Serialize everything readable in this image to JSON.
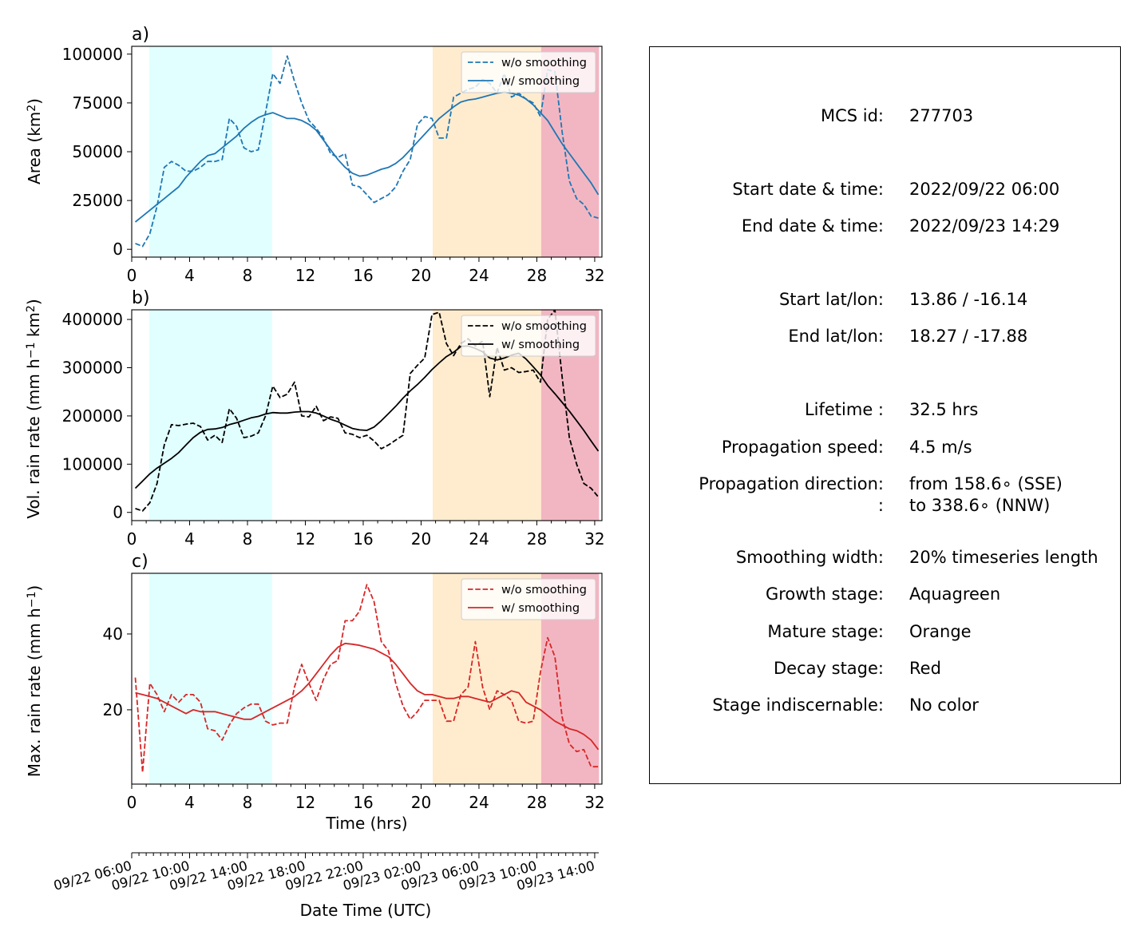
{
  "chart_data": [
    {
      "type": "line",
      "panel_label": "a)",
      "ylabel": "Area  (km²)",
      "ylabel_parts": [
        "Area  (km",
        "2",
        ")"
      ],
      "xlim": [
        0,
        32.5
      ],
      "ylim": [
        -4000,
        104000
      ],
      "x_ticks": [
        0,
        4,
        8,
        12,
        16,
        20,
        24,
        28,
        32
      ],
      "y_ticks": [
        0,
        25000,
        50000,
        75000,
        100000
      ],
      "legend": {
        "placement": "upper-right",
        "entries": [
          "w/o smoothing",
          "w/ smoothing"
        ]
      },
      "color": "#1f77b4",
      "x": [
        0.25,
        0.75,
        1.25,
        1.75,
        2.25,
        2.75,
        3.25,
        3.75,
        4.25,
        4.75,
        5.25,
        5.75,
        6.25,
        6.75,
        7.25,
        7.75,
        8.25,
        8.75,
        9.25,
        9.75,
        10.25,
        10.75,
        11.25,
        11.75,
        12.25,
        12.75,
        13.25,
        13.75,
        14.25,
        14.75,
        15.25,
        15.75,
        16.25,
        16.75,
        17.25,
        17.75,
        18.25,
        18.75,
        19.25,
        19.75,
        20.25,
        20.75,
        21.25,
        21.75,
        22.25,
        22.75,
        23.25,
        23.75,
        24.25,
        24.75,
        25.25,
        25.75,
        26.25,
        26.75,
        27.25,
        27.75,
        28.25,
        28.75,
        29.25,
        29.75,
        30.25,
        30.75,
        31.25,
        31.75,
        32.25
      ],
      "series": [
        {
          "name": "w/o smoothing",
          "style": "dashed",
          "values": [
            3000,
            1500,
            8000,
            22000,
            42000,
            45000,
            43000,
            40000,
            40000,
            42000,
            45000,
            45000,
            46000,
            67000,
            63000,
            52000,
            50000,
            51000,
            70000,
            90000,
            85000,
            99000,
            86000,
            75000,
            66000,
            62000,
            57000,
            49000,
            47000,
            49000,
            33000,
            32000,
            28000,
            24000,
            26000,
            28000,
            32000,
            40000,
            46000,
            64000,
            68000,
            67000,
            57000,
            57000,
            78000,
            80000,
            82000,
            83000,
            87000,
            85000,
            80000,
            90000,
            78000,
            80000,
            77000,
            75000,
            68000,
            92000,
            91000,
            60000,
            35000,
            26000,
            23000,
            17000,
            16000
          ]
        },
        {
          "name": "w/ smoothing",
          "style": "solid",
          "values": [
            14000,
            17000,
            20000,
            23000,
            26000,
            29000,
            32000,
            37000,
            41000,
            45000,
            48000,
            49000,
            52000,
            55000,
            58000,
            62000,
            65000,
            67500,
            69000,
            70000,
            68500,
            67000,
            67000,
            66000,
            64000,
            61000,
            56000,
            51000,
            46000,
            42000,
            39000,
            37500,
            38000,
            39500,
            41000,
            42000,
            44000,
            47000,
            51000,
            55000,
            59000,
            63000,
            67000,
            70000,
            73000,
            75500,
            76500,
            77000,
            78000,
            79000,
            80000,
            80500,
            80000,
            79000,
            77000,
            74000,
            70000,
            66000,
            60000,
            54000,
            49000,
            44000,
            39000,
            34000,
            28000
          ]
        }
      ]
    },
    {
      "type": "line",
      "panel_label": "b)",
      "ylabel": "Vol. rain rate (mm h⁻¹ km²)",
      "ylabel_parts": [
        "Vol. rain rate (mm h",
        "−1",
        " km",
        "2",
        ")"
      ],
      "xlim": [
        0,
        32.5
      ],
      "ylim": [
        -17000,
        420000
      ],
      "x_ticks": [
        0,
        4,
        8,
        12,
        16,
        20,
        24,
        28,
        32
      ],
      "y_ticks": [
        0,
        100000,
        200000,
        300000,
        400000
      ],
      "legend": {
        "placement": "upper-right",
        "entries": [
          "w/o smoothing",
          "w/ smoothing"
        ]
      },
      "color": "#000000",
      "x": [
        0.25,
        0.75,
        1.25,
        1.75,
        2.25,
        2.75,
        3.25,
        3.75,
        4.25,
        4.75,
        5.25,
        5.75,
        6.25,
        6.75,
        7.25,
        7.75,
        8.25,
        8.75,
        9.25,
        9.75,
        10.25,
        10.75,
        11.25,
        11.75,
        12.25,
        12.75,
        13.25,
        13.75,
        14.25,
        14.75,
        15.25,
        15.75,
        16.25,
        16.75,
        17.25,
        17.75,
        18.25,
        18.75,
        19.25,
        19.75,
        20.25,
        20.75,
        21.25,
        21.75,
        22.25,
        22.75,
        23.25,
        23.75,
        24.25,
        24.75,
        25.25,
        25.75,
        26.25,
        26.75,
        27.25,
        27.75,
        28.25,
        28.75,
        29.25,
        29.75,
        30.25,
        30.75,
        31.25,
        31.75,
        32.25
      ],
      "series": [
        {
          "name": "w/o smoothing",
          "style": "dashed",
          "values": [
            8000,
            3000,
            20000,
            60000,
            140000,
            182000,
            180000,
            183000,
            185000,
            178000,
            150000,
            160000,
            145000,
            215000,
            195000,
            155000,
            158000,
            165000,
            200000,
            262000,
            238000,
            245000,
            270000,
            200000,
            198000,
            220000,
            190000,
            198000,
            195000,
            165000,
            162000,
            155000,
            160000,
            148000,
            132000,
            140000,
            150000,
            160000,
            288000,
            305000,
            320000,
            410000,
            415000,
            350000,
            325000,
            350000,
            360000,
            345000,
            355000,
            240000,
            342000,
            295000,
            300000,
            290000,
            292000,
            295000,
            270000,
            400000,
            420000,
            280000,
            155000,
            100000,
            60000,
            50000,
            32000
          ]
        },
        {
          "name": "w/ smoothing",
          "style": "solid",
          "values": [
            50000,
            65000,
            80000,
            92000,
            102000,
            112000,
            124000,
            140000,
            155000,
            166000,
            172000,
            173000,
            176000,
            182000,
            186000,
            191000,
            196000,
            199000,
            204000,
            207000,
            206000,
            206000,
            208000,
            209000,
            209000,
            206000,
            200000,
            193000,
            188000,
            181000,
            174000,
            171000,
            170000,
            177000,
            190000,
            205000,
            220000,
            237000,
            252000,
            265000,
            280000,
            296000,
            310000,
            323000,
            332000,
            344000,
            345000,
            340000,
            333000,
            320000,
            316000,
            320000,
            326000,
            330000,
            318000,
            302000,
            285000,
            263000,
            246000,
            228000,
            210000,
            190000,
            170000,
            148000,
            127000
          ]
        }
      ]
    },
    {
      "type": "line",
      "panel_label": "c)",
      "ylabel": "Max. rain rate  (mm h⁻¹)",
      "ylabel_parts": [
        "Max. rain rate  (mm h",
        "−1",
        ")"
      ],
      "xlabel": "Time (hrs)",
      "xlim": [
        0,
        32.5
      ],
      "ylim": [
        0.4,
        56
      ],
      "x_ticks": [
        0,
        4,
        8,
        12,
        16,
        20,
        24,
        28,
        32
      ],
      "y_ticks": [
        20,
        40
      ],
      "legend": {
        "placement": "upper-right",
        "entries": [
          "w/o smoothing",
          "w/ smoothing"
        ]
      },
      "color": "#d62728",
      "x": [
        0.25,
        0.75,
        1.25,
        1.75,
        2.25,
        2.75,
        3.25,
        3.75,
        4.25,
        4.75,
        5.25,
        5.75,
        6.25,
        6.75,
        7.25,
        7.75,
        8.25,
        8.75,
        9.25,
        9.75,
        10.25,
        10.75,
        11.25,
        11.75,
        12.25,
        12.75,
        13.25,
        13.75,
        14.25,
        14.75,
        15.25,
        15.75,
        16.25,
        16.75,
        17.25,
        17.75,
        18.25,
        18.75,
        19.25,
        19.75,
        20.25,
        20.75,
        21.25,
        21.75,
        22.25,
        22.75,
        23.25,
        23.75,
        24.25,
        24.75,
        25.25,
        25.75,
        26.25,
        26.75,
        27.25,
        27.75,
        28.25,
        28.75,
        29.25,
        29.75,
        30.25,
        30.75,
        31.25,
        31.75,
        32.25
      ],
      "series": [
        {
          "name": "w/o smoothing",
          "style": "dashed",
          "values": [
            28.5,
            3.5,
            27,
            24,
            19.5,
            24,
            22,
            24,
            24,
            22,
            15,
            14.5,
            12,
            16,
            19,
            20.5,
            21.5,
            21.5,
            17,
            16,
            16.5,
            16.5,
            26,
            32,
            27,
            22.5,
            28,
            32,
            33,
            43.5,
            43.5,
            46,
            53,
            48.5,
            38,
            35.5,
            27,
            21,
            17.5,
            19.5,
            22.5,
            22.5,
            22.5,
            17,
            17,
            24,
            26,
            38,
            26,
            20,
            25,
            24,
            22.5,
            17,
            16.5,
            17,
            30,
            39,
            34,
            18,
            11,
            9,
            9.5,
            5,
            5
          ]
        },
        {
          "name": "w/ smoothing",
          "style": "solid",
          "values": [
            24.5,
            24,
            23.5,
            23,
            22,
            21,
            20,
            19,
            20,
            19.5,
            19.5,
            19.5,
            19,
            18.5,
            18,
            17.5,
            17.5,
            18.5,
            19.5,
            20.5,
            21.5,
            22.5,
            23.5,
            25,
            27,
            29.5,
            32,
            34.5,
            36.5,
            37.5,
            37.3,
            37,
            36.5,
            36,
            35,
            34,
            32,
            29.5,
            27,
            25,
            24,
            24,
            23.5,
            23,
            23,
            23.5,
            23.5,
            23,
            22.5,
            22,
            23,
            24,
            25,
            24.5,
            22,
            21,
            20,
            18.5,
            17,
            16,
            15,
            14.5,
            13.5,
            12,
            9.5
          ]
        }
      ]
    }
  ],
  "stages": [
    {
      "name": "Aquagreen",
      "x_start": 1.2,
      "x_end": 9.7,
      "color": "#e1ffff"
    },
    {
      "name": "Orange",
      "x_start": 20.8,
      "x_end": 28.3,
      "color": "#ffecce"
    },
    {
      "name": "Red",
      "x_start": 28.3,
      "x_end": 32.3,
      "color": "#f2b6c2"
    }
  ],
  "datetime_axis": {
    "xlabel": "Date Time (UTC)",
    "hours_per_minor_tick": 0.5,
    "ticks": [
      {
        "hour": 0,
        "label": "09/22 06:00"
      },
      {
        "hour": 4,
        "label": "09/22 10:00"
      },
      {
        "hour": 8,
        "label": "09/22 14:00"
      },
      {
        "hour": 12,
        "label": "09/22 18:00"
      },
      {
        "hour": 16,
        "label": "09/22 22:00"
      },
      {
        "hour": 20,
        "label": "09/23 02:00"
      },
      {
        "hour": 24,
        "label": "09/23 06:00"
      },
      {
        "hour": 28,
        "label": "09/23 10:00"
      },
      {
        "hour": 32,
        "label": "09/23 14:00"
      }
    ]
  },
  "info": {
    "mcs_id": {
      "key": "MCS id:",
      "value": "277703"
    },
    "start_time": {
      "key": "Start date & time:",
      "value": "2022/09/22 06:00"
    },
    "end_time": {
      "key": "End date & time:",
      "value": "2022/09/23 14:29"
    },
    "start_latlon": {
      "key": "Start lat/lon:",
      "value": "13.86 / -16.14"
    },
    "end_latlon": {
      "key": "End lat/lon:",
      "value": "18.27 / -17.88"
    },
    "lifetime": {
      "key": "Lifetime :",
      "value": "32.5 hrs"
    },
    "prop_speed": {
      "key": "Propagation speed:",
      "value": "4.5 m/s"
    },
    "prop_dir": {
      "key": "Propagation direction:",
      "key2": ":",
      "value": "from 158.6∘ (SSE)",
      "value2": "to   338.6∘ (NNW)"
    },
    "smoothing": {
      "key": "Smoothing width:",
      "value": "20% timeseries length"
    },
    "growth": {
      "key": "Growth stage:",
      "value": "Aquagreen"
    },
    "mature": {
      "key": "Mature stage:",
      "value": "Orange"
    },
    "decay": {
      "key": "Decay stage:",
      "value": "Red"
    },
    "indiscernable": {
      "key": "Stage indiscernable:",
      "value": "No color"
    }
  }
}
